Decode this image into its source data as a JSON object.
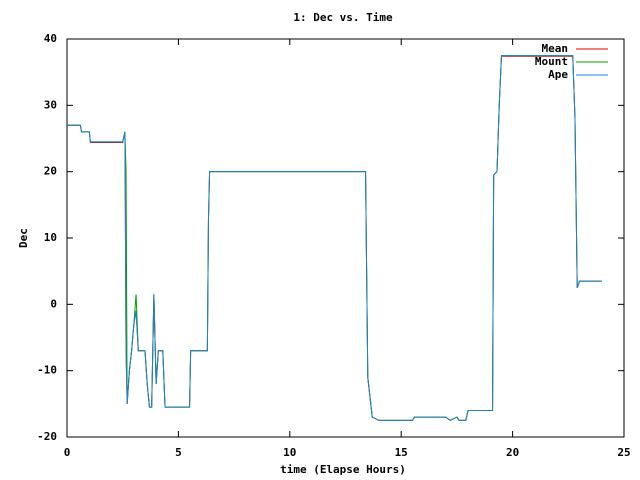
{
  "chart_data": {
    "type": "line",
    "title": "1: Dec vs. Time",
    "xlabel": "time (Elapse Hours)",
    "ylabel": "Dec",
    "x": [
      0,
      0.6,
      0.65,
      1.0,
      1.05,
      2.5,
      2.6,
      2.65,
      2.7,
      2.8,
      2.9,
      3.0,
      3.1,
      3.2,
      3.5,
      3.6,
      3.7,
      3.8,
      3.9,
      4.0,
      4.1,
      4.3,
      4.4,
      5.5,
      5.55,
      6.3,
      6.35,
      6.4,
      13.4,
      13.5,
      13.7,
      14.0,
      15.5,
      15.6,
      17.0,
      17.2,
      17.5,
      17.6,
      17.9,
      18.0,
      19.1,
      19.15,
      19.3,
      19.4,
      19.5,
      22.7,
      22.8,
      22.9,
      23.0,
      24.0
    ],
    "series": [
      {
        "name": "Mean",
        "color": "#e00000",
        "values": [
          27,
          27,
          26,
          26,
          24.4,
          24.4,
          26,
          -7,
          -15,
          -10,
          -7,
          -3,
          -1,
          -7,
          -7,
          -12,
          -15.5,
          -15.5,
          1.5,
          -12,
          -7,
          -7,
          -15.5,
          -15.5,
          -7,
          -7,
          13,
          20,
          20,
          -11,
          -17,
          -17.5,
          -17.5,
          -17,
          -17,
          -17.5,
          -17,
          -17.5,
          -17.5,
          -16,
          -16,
          19.5,
          20,
          30,
          37.4,
          37.4,
          28,
          2.5,
          3.5,
          3.5
        ]
      },
      {
        "name": "Mount",
        "color": "#00a000",
        "values": [
          27,
          27,
          26,
          26,
          24.5,
          24.5,
          26,
          20,
          -15,
          -10,
          -7,
          -3,
          1.5,
          -7,
          -7,
          -12,
          -15.5,
          -15.5,
          1.5,
          -12,
          -7,
          -7,
          -15.5,
          -15.5,
          -7,
          -7,
          13,
          20,
          20,
          -11,
          -17,
          -17.5,
          -17.5,
          -17,
          -17,
          -17.5,
          -17,
          -17.5,
          -17.5,
          -16,
          -16,
          19.5,
          20,
          30,
          37.5,
          37.5,
          28,
          2.5,
          3.5,
          3.5
        ]
      },
      {
        "name": "Ape",
        "color": "#2080d0",
        "values": [
          27,
          27,
          26,
          26,
          24.5,
          24.5,
          26,
          -7,
          -15,
          -10,
          -7,
          -3,
          -1,
          -7,
          -7,
          -12,
          -15.5,
          -15.5,
          1.5,
          -12,
          -7,
          -7,
          -15.5,
          -15.5,
          -7,
          -7,
          13,
          20,
          20,
          -11,
          -17,
          -17.5,
          -17.5,
          -17,
          -17,
          -17.5,
          -17,
          -17.5,
          -17.5,
          -16,
          -16,
          19.5,
          20,
          30,
          37.5,
          37.5,
          28,
          2.5,
          3.5,
          3.5
        ]
      }
    ],
    "xlim": [
      0,
      25
    ],
    "xticks": [
      0,
      5,
      10,
      15,
      20,
      25
    ],
    "ylim": [
      -20,
      40
    ],
    "yticks": [
      -20,
      -10,
      0,
      10,
      20,
      30,
      40
    ],
    "legend": "top-right"
  }
}
